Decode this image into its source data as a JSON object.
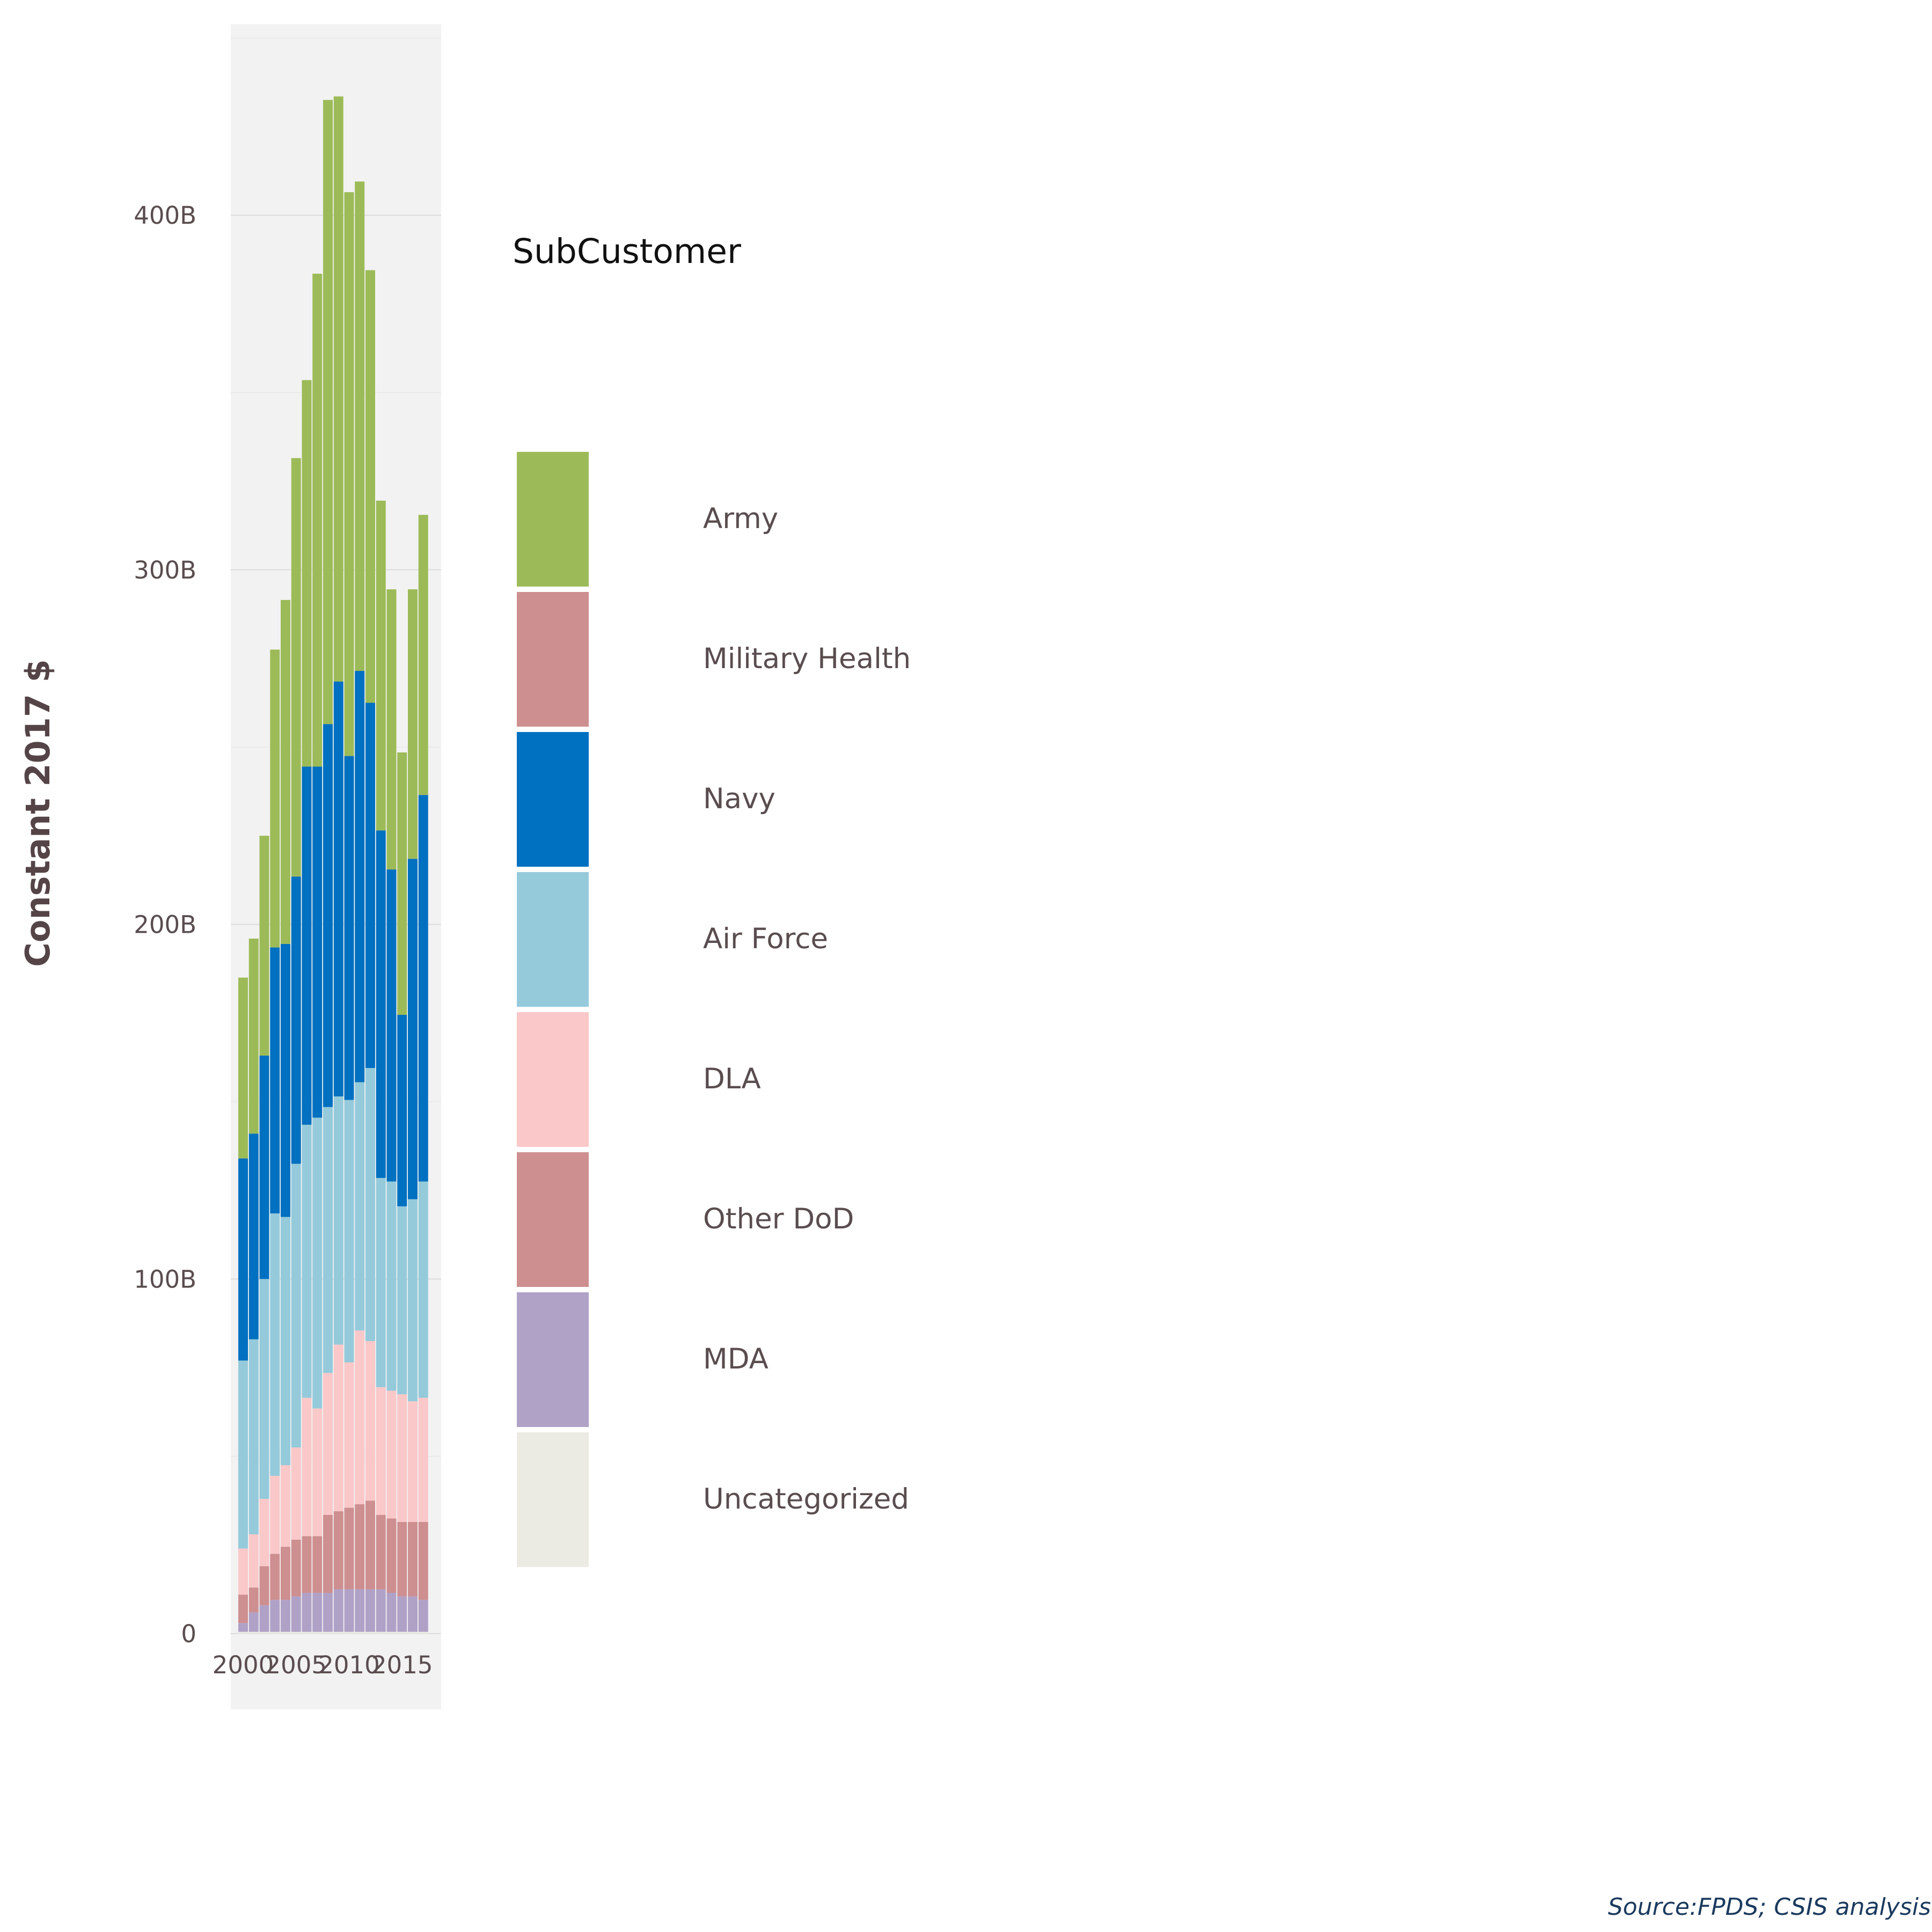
{
  "chart_data": {
    "type": "bar",
    "stacked": true,
    "x": [
      2000,
      2001,
      2002,
      2003,
      2004,
      2005,
      2006,
      2007,
      2008,
      2009,
      2010,
      2011,
      2012,
      2013,
      2014,
      2015,
      2016,
      2017
    ],
    "x_ticks": [
      2000,
      2005,
      2010,
      2015
    ],
    "x_tick_labels": [
      "2000",
      "2005",
      "2010",
      "2015"
    ],
    "y_ticks": [
      0,
      100,
      200,
      300,
      400
    ],
    "y_tick_labels": [
      "0",
      "100B",
      "200B",
      "300B",
      "400B"
    ],
    "ylim": [
      0,
      453
    ],
    "ylabel": "Constant 2017 $",
    "xlabel": "",
    "grid": true,
    "legend_title": "SubCustomer",
    "legend_position": "right",
    "caption": "Source:FPDS; CSIS analysis",
    "series": [
      {
        "name": "Uncategorized",
        "color": "#ECEBE3",
        "values": [
          0.5,
          0.5,
          0.5,
          0.5,
          0.5,
          0.5,
          0.5,
          0.5,
          0.5,
          0.5,
          0.5,
          0.5,
          0.5,
          0.5,
          0.5,
          0.5,
          0.5,
          0.5
        ]
      },
      {
        "name": "MDA",
        "color": "#B0A1C7",
        "values": [
          2.5,
          5.5,
          7.5,
          9,
          9,
          10,
          11,
          11,
          11,
          12,
          12,
          12,
          12,
          12,
          11,
          10,
          10,
          9
        ]
      },
      {
        "name": "Other DoD",
        "color": "#CE8F90",
        "values": [
          8,
          7,
          11,
          13,
          15,
          16,
          16,
          16,
          22,
          22,
          23,
          24,
          25,
          21,
          21,
          21,
          21,
          22
        ]
      },
      {
        "name": "DLA",
        "color": "#FAC8C9",
        "values": [
          13,
          15,
          19,
          22,
          23,
          26,
          39,
          36,
          40,
          47,
          41,
          49,
          45,
          36,
          36,
          36,
          34,
          35
        ]
      },
      {
        "name": "Air Force",
        "color": "#95CADB",
        "values": [
          53,
          55,
          62,
          74,
          70,
          80,
          77,
          82,
          75,
          70,
          74,
          70,
          77,
          59,
          59,
          53,
          57,
          61
        ]
      },
      {
        "name": "Navy",
        "color": "#0070C0",
        "values": [
          57,
          58,
          63,
          75,
          77,
          81,
          101,
          99,
          108,
          117,
          97,
          116,
          103,
          98,
          88,
          54,
          96,
          109
        ]
      },
      {
        "name": "Military Health",
        "color": "#CE8F90",
        "values": [
          0,
          0,
          0,
          0,
          0,
          0,
          0,
          0,
          0,
          0,
          0,
          0,
          0,
          0,
          0,
          0,
          0,
          0
        ]
      },
      {
        "name": "Army",
        "color": "#9CBB58",
        "values": [
          51,
          55,
          62,
          84,
          97,
          118,
          109,
          139,
          176,
          165,
          159,
          138,
          122,
          93,
          79,
          74,
          76,
          79
        ]
      }
    ]
  }
}
